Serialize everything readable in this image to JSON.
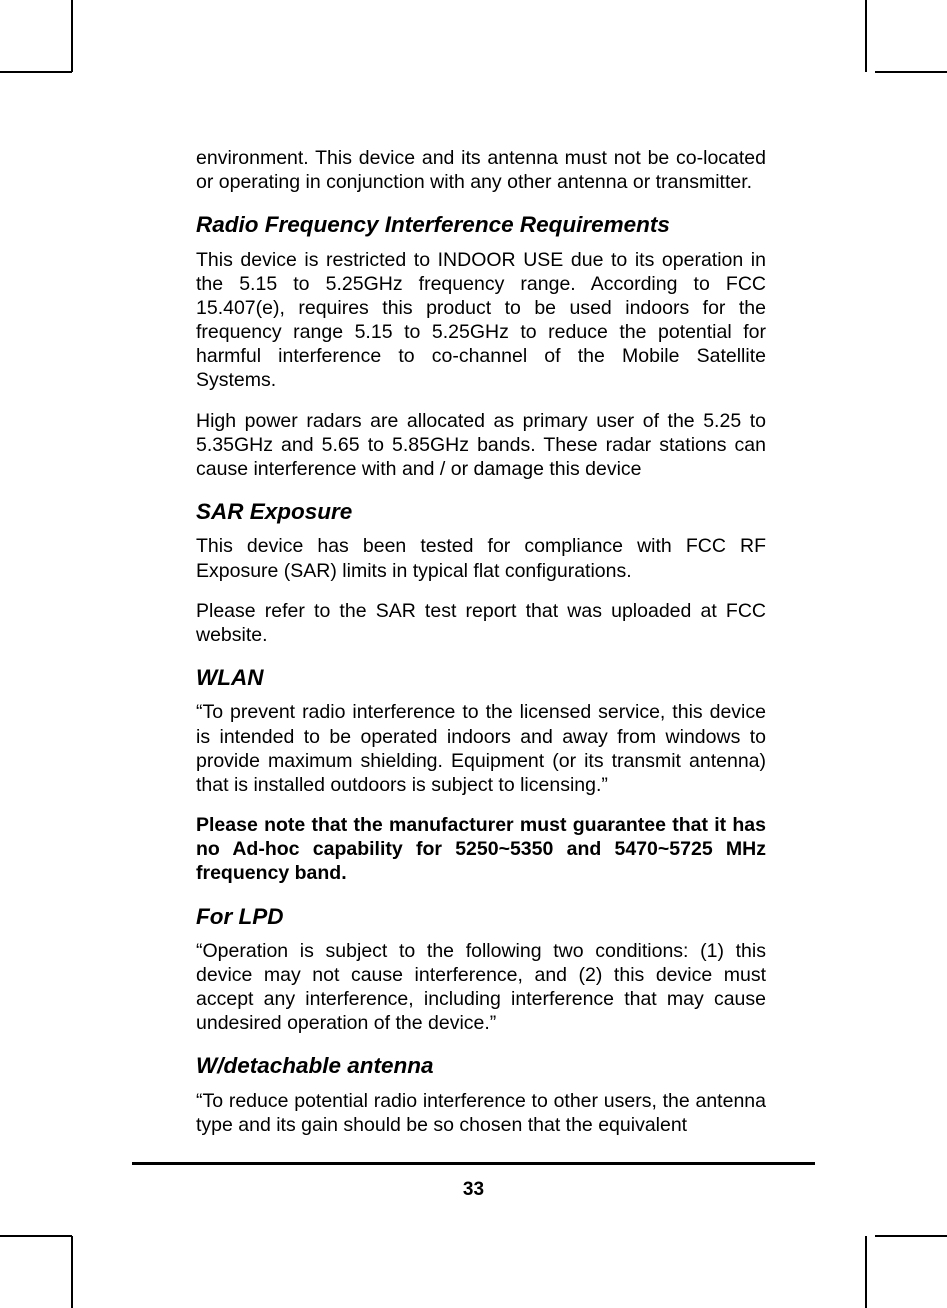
{
  "page": {
    "number": "33"
  },
  "intro_para": "environment. This device and its antenna must not be co-located or operating in conjunction with any other antenna or transmitter.",
  "sections": {
    "rfi": {
      "heading": "Radio Frequency Interference Requirements",
      "p1": "This device is restricted to INDOOR USE due to its operation in the 5.15 to 5.25GHz frequency range. According to FCC 15.407(e), requires this product to be used indoors for the frequency range 5.15 to 5.25GHz to reduce the potential for harmful interference to co-channel of the Mobile Satellite Systems.",
      "p2": "High power radars are allocated as primary user of the 5.25 to 5.35GHz and 5.65 to 5.85GHz bands. These radar stations can cause interference with and / or damage this device"
    },
    "sar": {
      "heading": "SAR Exposure",
      "p1": "This device has been tested for compliance with FCC RF Exposure (SAR) limits in typical flat configurations.",
      "p2": "Please refer to the SAR test report that was uploaded at FCC website."
    },
    "wlan": {
      "heading": "WLAN",
      "p1": "“To prevent radio interference to the licensed service, this device is intended to be operated indoors and away from windows to provide maximum shielding. Equipment (or its transmit antenna) that is installed outdoors is subject to licensing.”",
      "p2": "Please note that the manufacturer must guarantee that it has no Ad-hoc capability for 5250~5350 and 5470~5725 MHz frequency band."
    },
    "lpd": {
      "heading": "For LPD",
      "p1": "“Operation is subject to the following two conditions: (1) this device may not cause interference, and (2) this device must accept any interference, including interference that may cause undesired operation of the device.”"
    },
    "antenna": {
      "heading": "W/detachable antenna",
      "p1": "“To reduce potential radio interference to other users, the antenna type and its gain should be so chosen that the equivalent"
    }
  }
}
